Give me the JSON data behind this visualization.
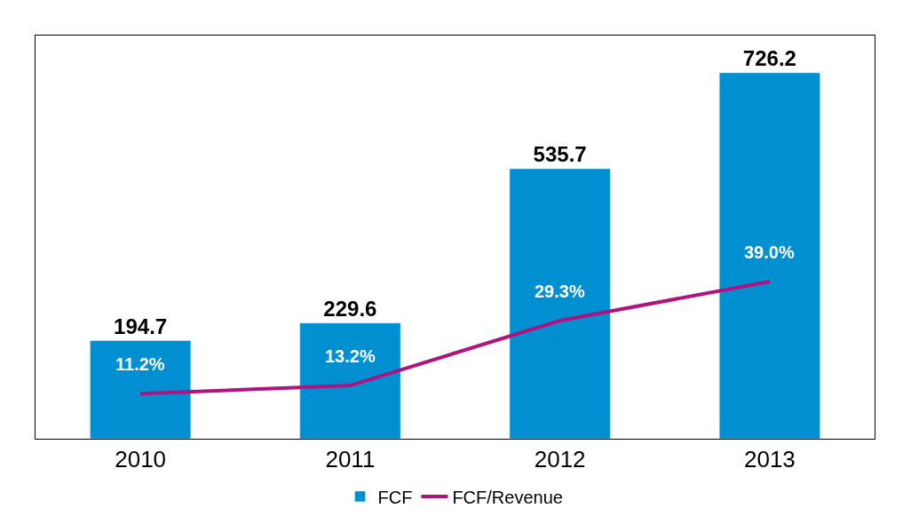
{
  "chart_data": {
    "type": "bar",
    "categories": [
      "2010",
      "2011",
      "2012",
      "2013"
    ],
    "series": [
      {
        "name": "FCF",
        "color": "#0090d2",
        "values": [
          194.7,
          229.6,
          535.7,
          726.2
        ],
        "value_labels": [
          "194.7",
          "229.6",
          "535.7",
          "726.2"
        ]
      },
      {
        "name": "FCF/Revenue",
        "type": "line",
        "axis": "y2",
        "color": "#b0137f",
        "values": [
          11.2,
          13.2,
          29.3,
          39.0
        ],
        "value_labels": [
          "11.2%",
          "13.2%",
          "29.3%",
          "39.0%"
        ]
      }
    ],
    "ylim": [
      0,
      800
    ],
    "y2lim": [
      0,
      100
    ],
    "tick_labels": "x",
    "legend": "bottom",
    "marker": "none",
    "line_style": "solid"
  }
}
